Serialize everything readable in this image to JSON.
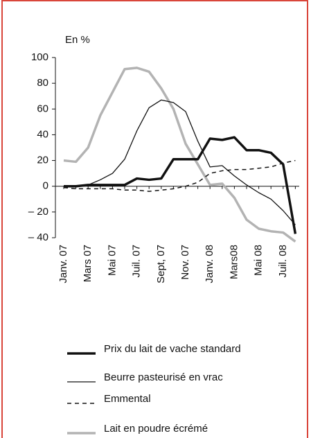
{
  "chart_data": {
    "type": "line",
    "y_label": "En %",
    "categories": [
      "Janv. 07",
      null,
      "Mars 07",
      null,
      "Mai 07",
      null,
      "Juil. 07",
      null,
      "Sept, 07",
      null,
      "Nov. 07",
      null,
      "Janv. 08",
      null,
      "Mars08",
      null,
      "Mai 08",
      null,
      "Juil. 08",
      null
    ],
    "series": [
      {
        "name": "Prix du lait de vache standard",
        "color": "#111111",
        "values": [
          0,
          0,
          1,
          1,
          1,
          1,
          6,
          5,
          6,
          21,
          21,
          21,
          37,
          36,
          38,
          28,
          28,
          26,
          17,
          -37
        ]
      },
      {
        "name": "Beurre pasteurisé en vrac",
        "color": "#111111",
        "values": [
          0,
          0,
          1,
          5,
          10,
          21,
          43,
          61,
          67,
          65,
          58,
          35,
          15,
          16,
          8,
          1,
          -5,
          -10,
          -19,
          -30
        ]
      },
      {
        "name": "Emmental",
        "color": "#111111",
        "values": [
          -1,
          -2,
          -2,
          -2,
          -2,
          -3,
          -3,
          -4,
          -3,
          -2,
          0,
          3,
          10,
          12,
          13,
          13,
          14,
          15,
          18,
          20
        ]
      },
      {
        "name": "Lait en poudre écrémé",
        "color": "#b3b3b3",
        "values": [
          20,
          19,
          30,
          55,
          73,
          91,
          92,
          89,
          76,
          60,
          33,
          17,
          1,
          2,
          -9,
          -26,
          -33,
          -35,
          -36,
          -43
        ]
      }
    ],
    "ylim": [
      -40,
      100
    ],
    "yticks": [
      100,
      80,
      60,
      40,
      20,
      0,
      {
        "value": -20,
        "label": "– 20"
      },
      {
        "value": -40,
        "label": "– 40"
      }
    ]
  }
}
